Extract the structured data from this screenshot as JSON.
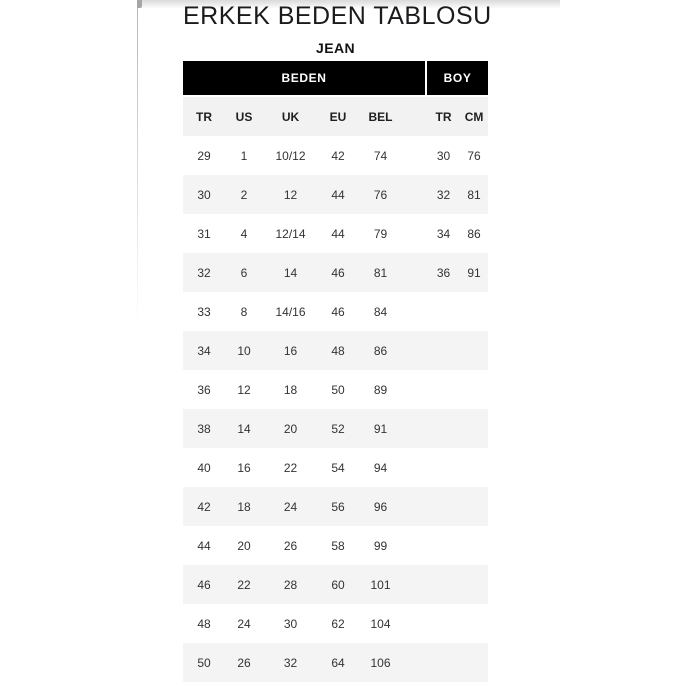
{
  "page": {
    "title": "ERKEK BEDEN TABLOSU",
    "subtitle": "JEAN"
  },
  "table": {
    "groups": [
      {
        "label": "BEDEN"
      },
      {
        "label": "BOY"
      }
    ],
    "columns": [
      "TR",
      "US",
      "UK",
      "EU",
      "BEL",
      "TR",
      "CM"
    ],
    "rows": [
      [
        "29",
        "1",
        "10/12",
        "42",
        "74",
        "30",
        "76"
      ],
      [
        "30",
        "2",
        "12",
        "44",
        "76",
        "32",
        "81"
      ],
      [
        "31",
        "4",
        "12/14",
        "44",
        "79",
        "34",
        "86"
      ],
      [
        "32",
        "6",
        "14",
        "46",
        "81",
        "36",
        "91"
      ],
      [
        "33",
        "8",
        "14/16",
        "46",
        "84",
        "",
        ""
      ],
      [
        "34",
        "10",
        "16",
        "48",
        "86",
        "",
        ""
      ],
      [
        "36",
        "12",
        "18",
        "50",
        "89",
        "",
        ""
      ],
      [
        "38",
        "14",
        "20",
        "52",
        "91",
        "",
        ""
      ],
      [
        "40",
        "16",
        "22",
        "54",
        "94",
        "",
        ""
      ],
      [
        "42",
        "18",
        "24",
        "56",
        "96",
        "",
        ""
      ],
      [
        "44",
        "20",
        "26",
        "58",
        "99",
        "",
        ""
      ],
      [
        "46",
        "22",
        "28",
        "60",
        "101",
        "",
        ""
      ],
      [
        "48",
        "24",
        "30",
        "62",
        "104",
        "",
        ""
      ],
      [
        "50",
        "26",
        "32",
        "64",
        "106",
        "",
        ""
      ]
    ],
    "colors": {
      "group_header_bg": "#000000",
      "group_header_text": "#ffffff",
      "subheader_bg": "#f2f2f2",
      "row_bg": "#ffffff",
      "row_alt_bg": "#f4f4f4",
      "text": "#333333"
    }
  }
}
